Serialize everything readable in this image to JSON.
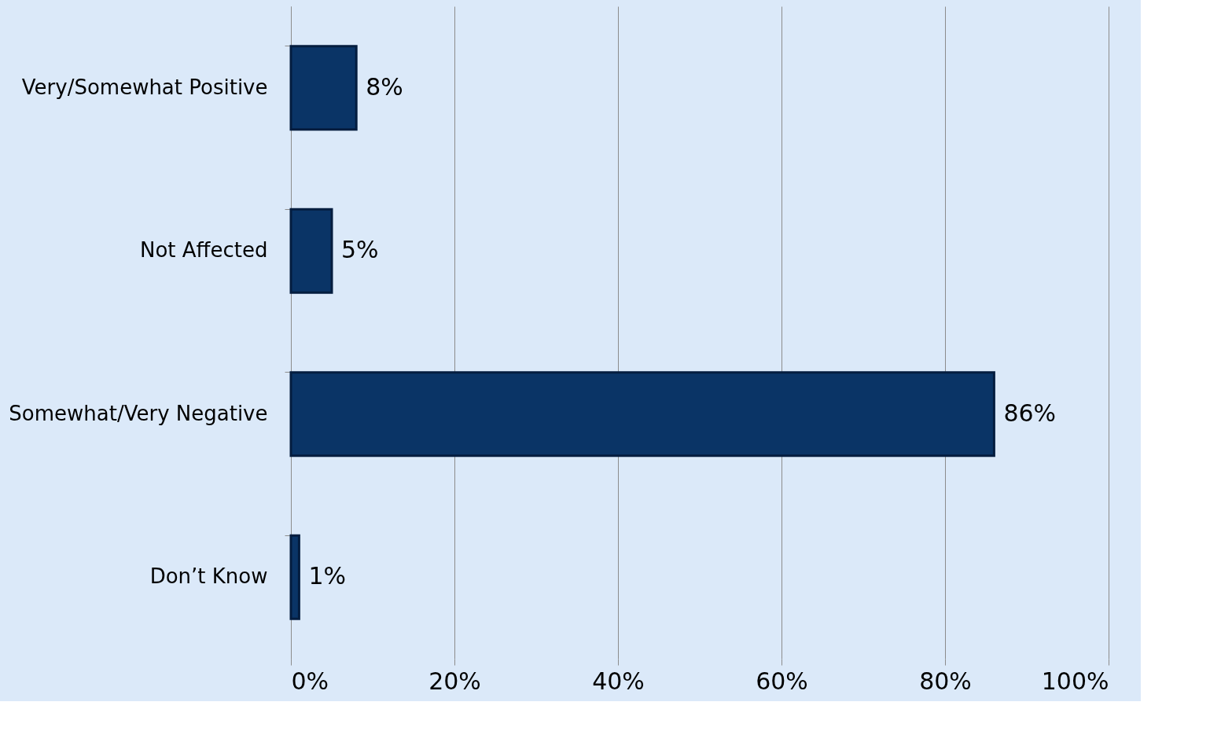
{
  "chart_data": {
    "type": "bar",
    "orientation": "horizontal",
    "categories": [
      "Very/Somewhat Positive",
      "Not Affected",
      "Somewhat/Very Negative",
      "Don’t Know"
    ],
    "values": [
      8,
      5,
      86,
      1
    ],
    "value_labels": [
      "8%",
      "5%",
      "86%",
      "1%"
    ],
    "color": "#0a3466",
    "xlim": [
      0,
      100
    ],
    "xticks": [
      {
        "value": 0,
        "label": "0%"
      },
      {
        "value": 20,
        "label": "20%"
      },
      {
        "value": 40,
        "label": "40%"
      },
      {
        "value": 60,
        "label": "60%"
      },
      {
        "value": 80,
        "label": "80%"
      },
      {
        "value": 100,
        "label": "100%"
      }
    ],
    "grid": "x"
  }
}
